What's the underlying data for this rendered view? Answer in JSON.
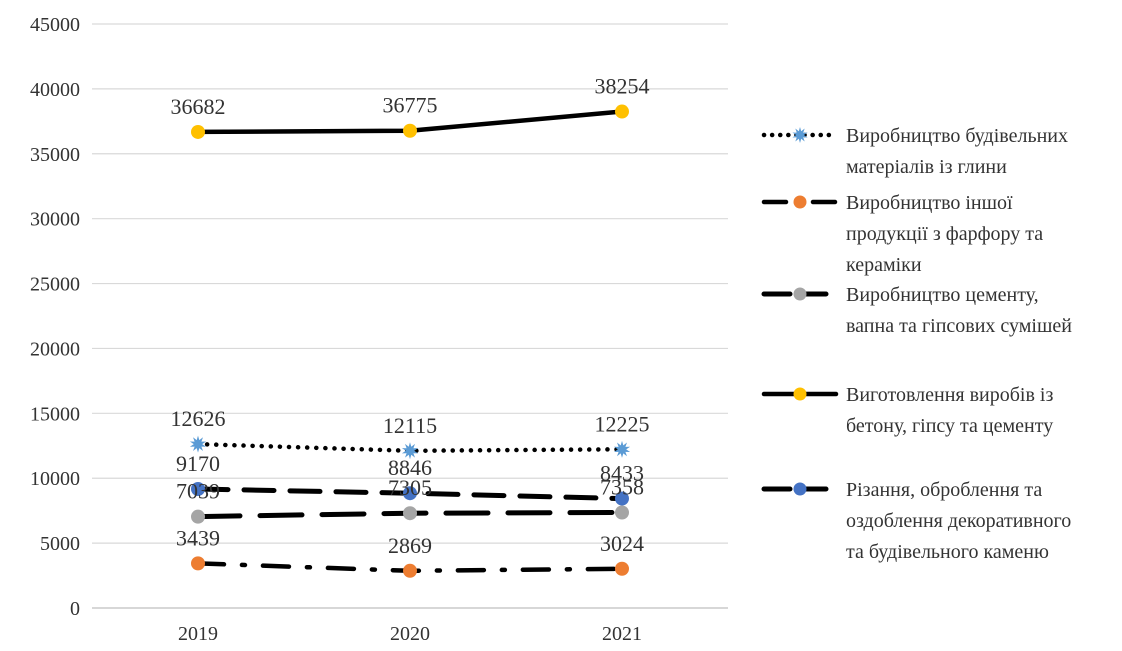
{
  "chart_data": {
    "type": "line",
    "categories": [
      "2019",
      "2020",
      "2021"
    ],
    "ylim": [
      0,
      45000
    ],
    "yticks": [
      0,
      5000,
      10000,
      15000,
      20000,
      25000,
      30000,
      35000,
      40000,
      45000
    ],
    "grid": true,
    "legend_position": "right",
    "series": [
      {
        "name": "Виробництво будівельних матеріалів із глини",
        "name_lines": [
          "Виробництво будівельних",
          "матеріалів із глини"
        ],
        "values": [
          12626,
          12115,
          12225
        ],
        "line_style": "dotted",
        "marker": "star",
        "color": "#5B9BD5",
        "line_color": "#000000"
      },
      {
        "name": "Виробництво іншої продукції з фарфору та кераміки",
        "name_lines": [
          "Виробництво іншої",
          "продукції з фарфору та",
          "кераміки"
        ],
        "values": [
          3439,
          2869,
          3024
        ],
        "line_style": "dash-dot",
        "marker": "circle",
        "color": "#ED7D31",
        "line_color": "#000000"
      },
      {
        "name": "Виробництво цементу, вапна та гіпсових сумішей",
        "name_lines": [
          "Виробництво цементу,",
          "вапна та гіпсових сумішей"
        ],
        "values": [
          7039,
          7305,
          7358
        ],
        "line_style": "long-dash",
        "marker": "circle",
        "color": "#A5A5A5",
        "line_color": "#000000"
      },
      {
        "name": "Виготовлення виробів із бетону, гіпсу та цементу",
        "name_lines": [
          "Виготовлення виробів із",
          "бетону, гіпсу та цементу"
        ],
        "values": [
          36682,
          36775,
          38254
        ],
        "line_style": "solid",
        "marker": "circle",
        "color": "#FFC000",
        "line_color": "#000000"
      },
      {
        "name": "Різання, оброблення та оздоблення декоративного та будівельного каменю",
        "name_lines": [
          "Різання, оброблення та",
          "оздоблення декоративного",
          "та будівельного каменю"
        ],
        "values": [
          9170,
          8846,
          8433
        ],
        "line_style": "dashed",
        "marker": "circle",
        "color": "#4472C4",
        "line_color": "#000000"
      }
    ]
  }
}
